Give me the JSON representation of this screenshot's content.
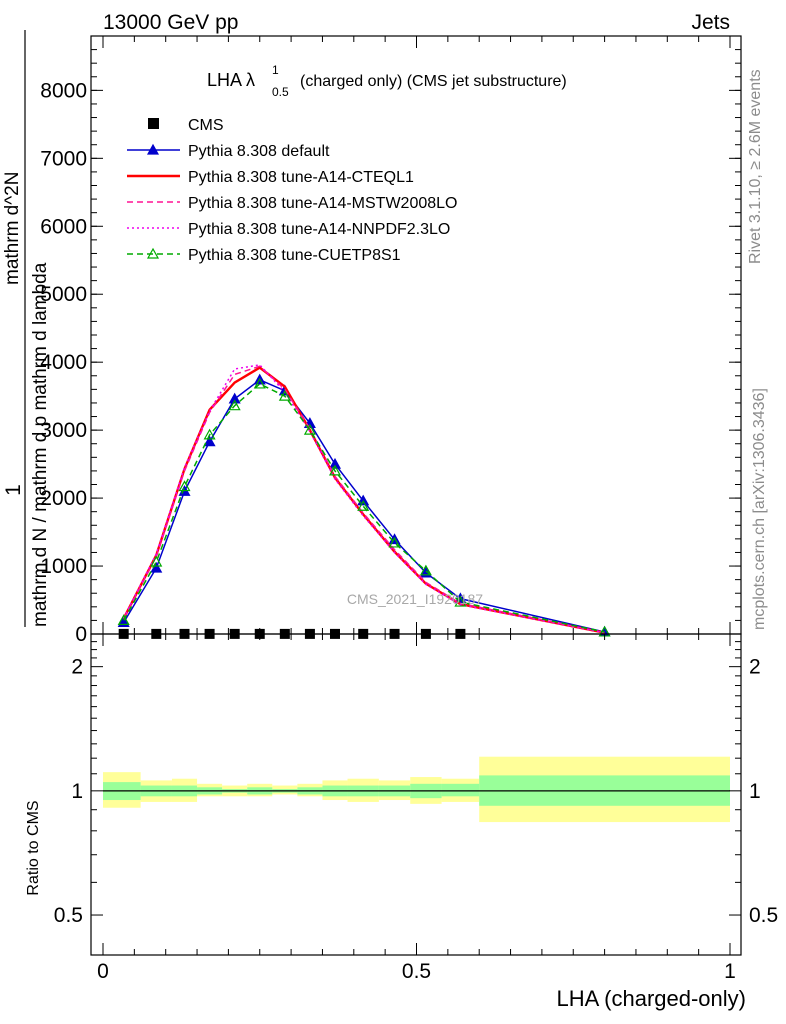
{
  "header": {
    "left": "13000 GeV pp",
    "right": "Jets"
  },
  "side_labels": {
    "rivet": "Rivet 3.1.10, ≥ 2.6M events",
    "mcplots": "mcplots.cern.ch [arXiv:1306.3436]"
  },
  "watermark": "CMS_2021_I1920187",
  "plot_title": {
    "main": "LHA λ",
    "sup": "1",
    "sub": "0.5",
    "rest": "(charged only) (CMS jet substructure)"
  },
  "ylabel_main": {
    "one": "1",
    "denominator": "mathrm d N / mathrm d p mathrm d lambda",
    "numerator": "mathrm d^2N",
    "full_text": "mathrm d N/ mathrm d p mathrm d lambda  /  mathrm d^2N / mathrm d p mathrm d lambda"
  },
  "ylabel_ratio": "Ratio to CMS",
  "xlabel": "LHA (charged-only)",
  "colors": {
    "data": "#000000",
    "default": "#0000cc",
    "cteql1": "#ff0000",
    "mstw": "#ff1493",
    "nnpdf": "#ee00ee",
    "cuetp8s1": "#00aa00",
    "band_inner": "#99ff99",
    "band_outer": "#ffff99"
  },
  "chart_data": [
    {
      "type": "line",
      "panel": "main",
      "xlim": [
        0,
        1
      ],
      "ylim": [
        0,
        8800
      ],
      "y_ticks": [
        1000,
        2000,
        3000,
        4000,
        5000,
        6000,
        7000,
        8000
      ],
      "y_tick_labels": [
        "1000",
        "2000",
        "3000",
        "4000",
        "5000",
        "6000",
        "7000",
        "8000"
      ],
      "x_tick_labels": [
        "0",
        "0.5",
        "1"
      ],
      "legend_position": "top-left",
      "series": [
        {
          "name": "CMS",
          "marker": "square",
          "x": [
            0.033,
            0.085,
            0.13,
            0.17,
            0.21,
            0.25,
            0.29,
            0.33,
            0.37,
            0.415,
            0.465,
            0.515,
            0.57
          ],
          "values": [
            1.5,
            1.5,
            1.5,
            1.5,
            1.5,
            1.5,
            1.5,
            1.5,
            1.5,
            1.5,
            1.5,
            1.5,
            1.5
          ]
        },
        {
          "name": "Pythia 8.308 default",
          "line": "solid",
          "marker": "triangle",
          "x": [
            0.033,
            0.085,
            0.13,
            0.17,
            0.21,
            0.25,
            0.29,
            0.33,
            0.37,
            0.415,
            0.465,
            0.515,
            0.57,
            0.8
          ],
          "values": [
            170,
            970,
            2100,
            2830,
            3460,
            3740,
            3580,
            3100,
            2500,
            1960,
            1390,
            900,
            520,
            30
          ]
        },
        {
          "name": "Pythia 8.308 tune-A14-CTEQL1",
          "line": "solid",
          "x": [
            0.033,
            0.085,
            0.13,
            0.17,
            0.21,
            0.25,
            0.29,
            0.33,
            0.37,
            0.415,
            0.465,
            0.515,
            0.57,
            0.8
          ],
          "values": [
            230,
            1160,
            2430,
            3300,
            3700,
            3920,
            3640,
            3000,
            2300,
            1760,
            1210,
            740,
            440,
            20
          ]
        },
        {
          "name": "Pythia 8.308 tune-A14-MSTW2008LO",
          "line": "dashed",
          "x": [
            0.033,
            0.085,
            0.13,
            0.17,
            0.21,
            0.25,
            0.29,
            0.33,
            0.37,
            0.415,
            0.465,
            0.515,
            0.57,
            0.8
          ],
          "values": [
            225,
            1140,
            2400,
            3260,
            3820,
            3940,
            3600,
            3020,
            2320,
            1780,
            1240,
            760,
            450,
            20
          ]
        },
        {
          "name": "Pythia 8.308 tune-A14-NNPDF2.3LO",
          "line": "dotted",
          "x": [
            0.033,
            0.085,
            0.13,
            0.17,
            0.21,
            0.25,
            0.29,
            0.33,
            0.37,
            0.415,
            0.465,
            0.515,
            0.57,
            0.8
          ],
          "values": [
            235,
            1180,
            2450,
            3280,
            3900,
            3960,
            3560,
            2980,
            2280,
            1740,
            1200,
            730,
            430,
            20
          ]
        },
        {
          "name": "Pythia 8.308 tune-CUETP8S1",
          "line": "dashed",
          "marker": "open-triangle",
          "x": [
            0.033,
            0.085,
            0.13,
            0.17,
            0.21,
            0.25,
            0.29,
            0.33,
            0.37,
            0.415,
            0.465,
            0.515,
            0.57,
            0.8
          ],
          "values": [
            200,
            1060,
            2170,
            2930,
            3360,
            3680,
            3500,
            3000,
            2400,
            1880,
            1340,
            930,
            470,
            30
          ]
        }
      ]
    },
    {
      "type": "area",
      "panel": "ratio",
      "xlim": [
        0,
        1
      ],
      "ylim": [
        0.4,
        2.4
      ],
      "y_scale": "log",
      "y_ticks": [
        0.5,
        1,
        2
      ],
      "y_tick_labels": [
        "0.5",
        "1",
        "2"
      ],
      "x_tick_labels": [
        "0",
        "0.5",
        "1"
      ],
      "reference_line": 1,
      "bins": [
        {
          "x_low": 0.0,
          "x_high": 0.06,
          "inner": [
            0.95,
            1.05
          ],
          "outer": [
            0.91,
            1.11
          ]
        },
        {
          "x_low": 0.06,
          "x_high": 0.11,
          "inner": [
            0.97,
            1.03
          ],
          "outer": [
            0.94,
            1.06
          ]
        },
        {
          "x_low": 0.11,
          "x_high": 0.15,
          "inner": [
            0.97,
            1.03
          ],
          "outer": [
            0.94,
            1.07
          ]
        },
        {
          "x_low": 0.15,
          "x_high": 0.19,
          "inner": [
            0.98,
            1.02
          ],
          "outer": [
            0.97,
            1.04
          ]
        },
        {
          "x_low": 0.19,
          "x_high": 0.23,
          "inner": [
            0.99,
            1.01
          ],
          "outer": [
            0.97,
            1.03
          ]
        },
        {
          "x_low": 0.23,
          "x_high": 0.27,
          "inner": [
            0.98,
            1.02
          ],
          "outer": [
            0.97,
            1.04
          ]
        },
        {
          "x_low": 0.27,
          "x_high": 0.31,
          "inner": [
            0.99,
            1.01
          ],
          "outer": [
            0.98,
            1.03
          ]
        },
        {
          "x_low": 0.31,
          "x_high": 0.35,
          "inner": [
            0.98,
            1.02
          ],
          "outer": [
            0.97,
            1.04
          ]
        },
        {
          "x_low": 0.35,
          "x_high": 0.39,
          "inner": [
            0.97,
            1.03
          ],
          "outer": [
            0.95,
            1.06
          ]
        },
        {
          "x_low": 0.39,
          "x_high": 0.44,
          "inner": [
            0.97,
            1.03
          ],
          "outer": [
            0.94,
            1.07
          ]
        },
        {
          "x_low": 0.44,
          "x_high": 0.49,
          "inner": [
            0.97,
            1.03
          ],
          "outer": [
            0.95,
            1.06
          ]
        },
        {
          "x_low": 0.49,
          "x_high": 0.54,
          "inner": [
            0.96,
            1.04
          ],
          "outer": [
            0.93,
            1.08
          ]
        },
        {
          "x_low": 0.54,
          "x_high": 0.6,
          "inner": [
            0.97,
            1.04
          ],
          "outer": [
            0.94,
            1.07
          ]
        },
        {
          "x_low": 0.6,
          "x_high": 1.0,
          "inner": [
            0.92,
            1.09
          ],
          "outer": [
            0.84,
            1.21
          ]
        }
      ]
    }
  ]
}
